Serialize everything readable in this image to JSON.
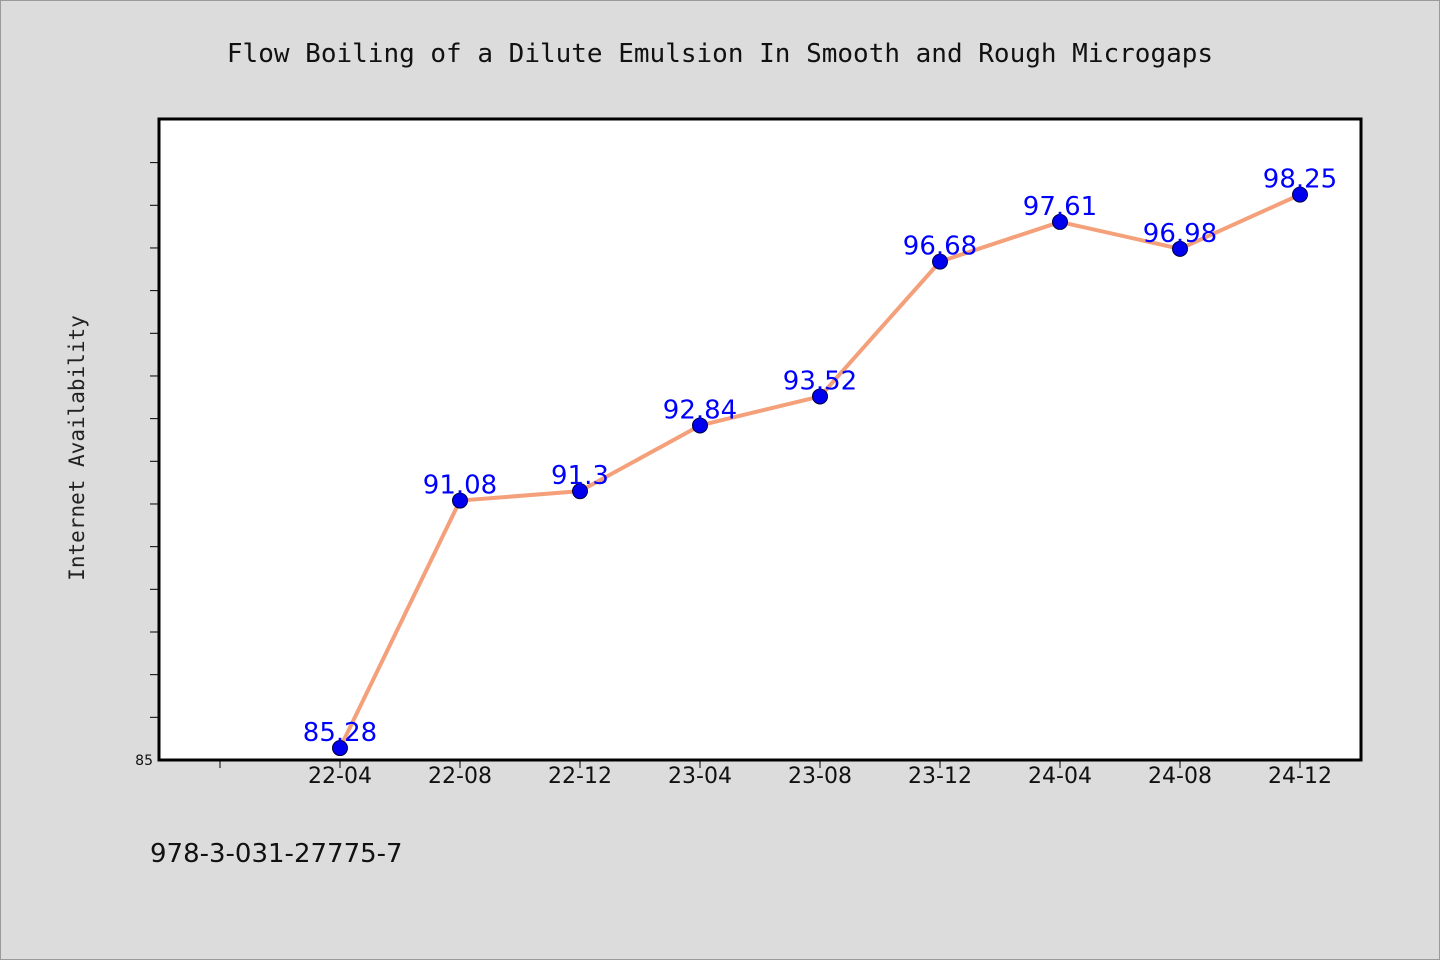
{
  "chart_data": {
    "type": "line",
    "title": "Flow Boiling of a Dilute Emulsion In Smooth and Rough Microgaps",
    "xlabel": "",
    "ylabel": "Internet Availability",
    "categories": [
      "22-04",
      "22-08",
      "22-12",
      "23-04",
      "23-08",
      "23-12",
      "24-04",
      "24-08",
      "24-12"
    ],
    "series": [
      {
        "values": [
          85.28,
          91.08,
          91.3,
          92.84,
          93.52,
          96.68,
          97.61,
          96.98,
          98.25
        ],
        "labels": [
          "85.28",
          "91.08",
          "91.3",
          "92.84",
          "93.52",
          "96.68",
          "97.61",
          "96.98",
          "98.25"
        ]
      }
    ],
    "ylim": [
      85,
      100
    ],
    "ytick_labels": [
      "85"
    ],
    "grid": false,
    "legend": "none",
    "line_color": "#f4a07a",
    "marker_color": "#0000ee",
    "label_color": "#0000ff",
    "plot_background": "#ffffff",
    "page_background": "#dcdcdc"
  },
  "footer": {
    "isbn": "978-3-031-27775-7"
  }
}
